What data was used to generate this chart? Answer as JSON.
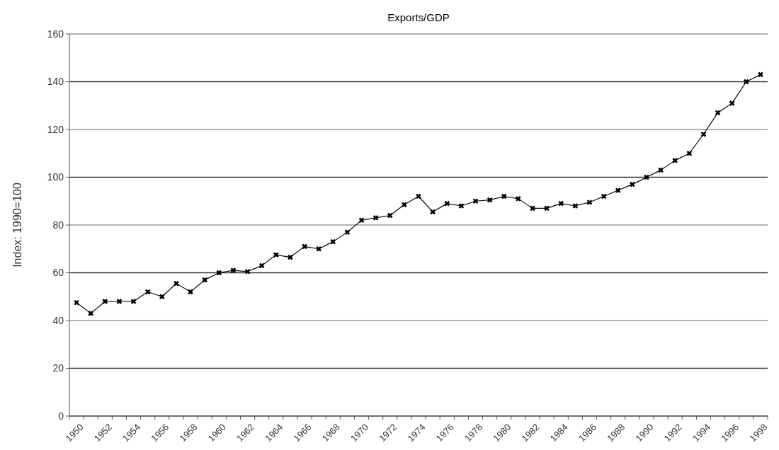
{
  "chart_data": {
    "type": "line",
    "title": "Exports/GDP",
    "ylabel": "Index: 1990=100",
    "categories": [
      "1950",
      null,
      "1952",
      null,
      "1954",
      null,
      "1956",
      null,
      "1958",
      null,
      "1960",
      null,
      "1962",
      null,
      "1964",
      null,
      "1966",
      null,
      "1968",
      null,
      "1970",
      null,
      "1972",
      null,
      "1974",
      null,
      "1976",
      null,
      "1978",
      null,
      "1980",
      null,
      "1982",
      null,
      "1984",
      null,
      "1986",
      null,
      "1988",
      null,
      "1990",
      null,
      "1992",
      null,
      "1994",
      null,
      "1996",
      null,
      "1998"
    ],
    "series": [
      {
        "color": "#000000",
        "values": [
          47.5,
          43,
          48,
          48,
          48,
          52,
          50,
          55.5,
          52,
          57,
          60,
          61,
          60.5,
          63,
          67.5,
          66.5,
          71,
          70,
          73,
          77,
          82,
          83,
          84,
          88.5,
          92,
          85.5,
          89,
          88,
          90,
          90.5,
          92,
          91,
          87,
          87,
          89,
          88,
          89.5,
          92,
          94.5,
          97,
          100,
          103,
          107,
          110,
          118,
          127,
          131,
          140,
          143
        ]
      }
    ],
    "ylim": [
      0,
      160
    ],
    "yticks": [
      0,
      20,
      40,
      60,
      80,
      100,
      120,
      140,
      160
    ],
    "grid": "y",
    "marker": "cross",
    "line_style": "solid"
  }
}
